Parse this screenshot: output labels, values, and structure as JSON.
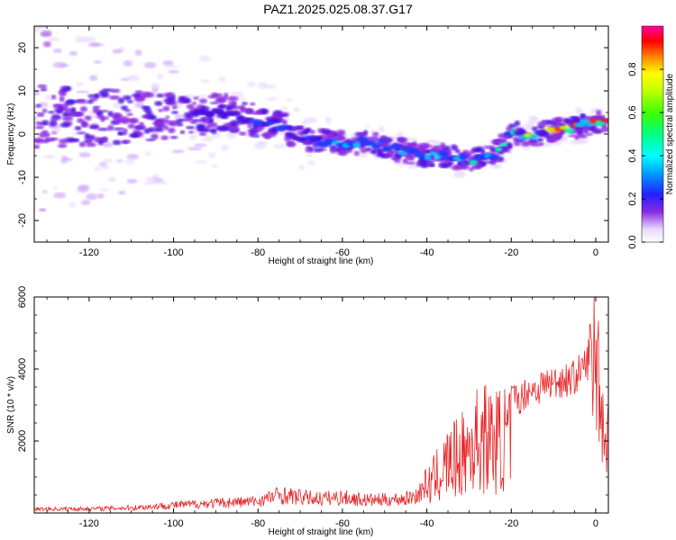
{
  "title": "PAZ1.2025.025.08.37.G17",
  "colors": {
    "snr_line": "#e8282a",
    "axis": "#000000"
  },
  "chart_data": [
    {
      "type": "heatmap",
      "title": "PAZ1.2025.025.08.37.G17",
      "xlabel": "Height of straight line (km)",
      "ylabel": "Frequency (Hz)",
      "xlim": [
        -133,
        3
      ],
      "ylim": [
        -25,
        25
      ],
      "xticks": [
        -120,
        -100,
        -80,
        -60,
        -40,
        -20,
        0
      ],
      "yticks": [
        -20,
        -10,
        0,
        10,
        20
      ],
      "colorbar": {
        "label": "Normalized spectral amplitude",
        "range": [
          0.0,
          1.0
        ],
        "ticks": [
          0.0,
          0.2,
          0.4,
          0.6,
          0.8
        ]
      },
      "ridge": {
        "description_points_km_hz": [
          [
            -133,
            4
          ],
          [
            -120,
            4
          ],
          [
            -100,
            4
          ],
          [
            -88,
            5
          ],
          [
            -80,
            3
          ],
          [
            -74,
            2
          ],
          [
            -70,
            -1
          ],
          [
            -60,
            -2
          ],
          [
            -52,
            -2
          ],
          [
            -45,
            -4
          ],
          [
            -40,
            -5
          ],
          [
            -35,
            -5
          ],
          [
            -30,
            -6
          ],
          [
            -24,
            -5
          ],
          [
            -20,
            0
          ],
          [
            -14,
            0
          ],
          [
            -8,
            1
          ],
          [
            -3,
            2
          ],
          [
            2,
            3
          ]
        ]
      }
    },
    {
      "type": "line",
      "xlabel": "Height of straight line (km)",
      "ylabel": "SNR (10 * v/v)",
      "xlim": [
        -133,
        3
      ],
      "ylim": [
        0,
        6000
      ],
      "xticks": [
        -120,
        -100,
        -80,
        -60,
        -40,
        -20,
        0
      ],
      "yticks": [
        2000,
        4000,
        6000
      ],
      "series": [
        {
          "envelope_points": [
            [
              -133,
              150
            ],
            [
              -120,
              160
            ],
            [
              -110,
              200
            ],
            [
              -100,
              300
            ],
            [
              -90,
              380
            ],
            [
              -80,
              450
            ],
            [
              -75,
              700
            ],
            [
              -70,
              600
            ],
            [
              -65,
              550
            ],
            [
              -60,
              600
            ],
            [
              -55,
              500
            ],
            [
              -50,
              500
            ],
            [
              -45,
              550
            ],
            [
              -42,
              700
            ],
            [
              -40,
              1200
            ],
            [
              -38,
              1600
            ],
            [
              -35,
              2300
            ],
            [
              -32,
              2600
            ],
            [
              -30,
              3000
            ],
            [
              -28,
              3400
            ],
            [
              -26,
              3500
            ],
            [
              -24,
              3300
            ],
            [
              -22,
              3400
            ],
            [
              -20,
              3500
            ],
            [
              -18,
              3400
            ],
            [
              -16,
              3700
            ],
            [
              -14,
              3700
            ],
            [
              -12,
              3900
            ],
            [
              -10,
              3900
            ],
            [
              -8,
              4000
            ],
            [
              -6,
              4000
            ],
            [
              -4,
              4200
            ],
            [
              -2,
              4500
            ],
            [
              -1,
              5500
            ],
            [
              0,
              6000
            ],
            [
              1,
              5200
            ],
            [
              2,
              2600
            ],
            [
              3,
              3200
            ]
          ]
        }
      ]
    }
  ]
}
